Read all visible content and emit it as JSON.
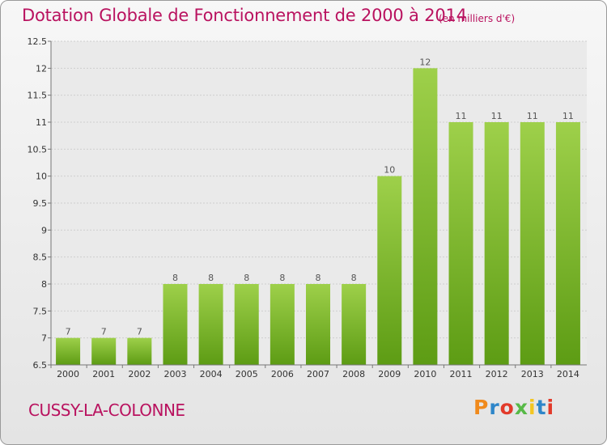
{
  "header": {
    "title": "Dotation Globale de Fonctionnement de 2000 à 2014",
    "unit": "(en milliers d'€)"
  },
  "footer": {
    "place": "CUSSY-LA-COLONNE",
    "logo_text": "Proxiti",
    "logo_colors": [
      "#f08a1c",
      "#2e86c9",
      "#e23a2a",
      "#57b947",
      "#f3c623",
      "#2e86c9",
      "#e23a2a"
    ]
  },
  "chart_data": {
    "type": "bar",
    "categories": [
      "2000",
      "2001",
      "2002",
      "2003",
      "2004",
      "2005",
      "2006",
      "2007",
      "2008",
      "2009",
      "2010",
      "2011",
      "2012",
      "2013",
      "2014"
    ],
    "values": [
      7,
      7,
      7,
      8,
      8,
      8,
      8,
      8,
      8,
      10,
      12,
      11,
      11,
      11,
      11
    ],
    "data_labels": [
      "7",
      "7",
      "7",
      "8",
      "8",
      "8",
      "8",
      "8",
      "8",
      "10",
      "12",
      "11",
      "11",
      "11",
      "11"
    ],
    "yticks": [
      6.5,
      7,
      7.5,
      8,
      8.5,
      9,
      9.5,
      10,
      10.5,
      11,
      11.5,
      12,
      12.5
    ],
    "ytick_labels": [
      "6.5",
      "7",
      "7.5",
      "8",
      "8.5",
      "9",
      "9.5",
      "10",
      "10.5",
      "11",
      "11.5",
      "12",
      "12.5"
    ],
    "ylim": [
      6.5,
      12.5
    ],
    "title": "Dotation Globale de Fonctionnement de 2000 à 2014",
    "ylabel": "(en milliers d'€)",
    "xlabel": "",
    "grid": "horizontal",
    "bar_color": "#8cc43c"
  }
}
